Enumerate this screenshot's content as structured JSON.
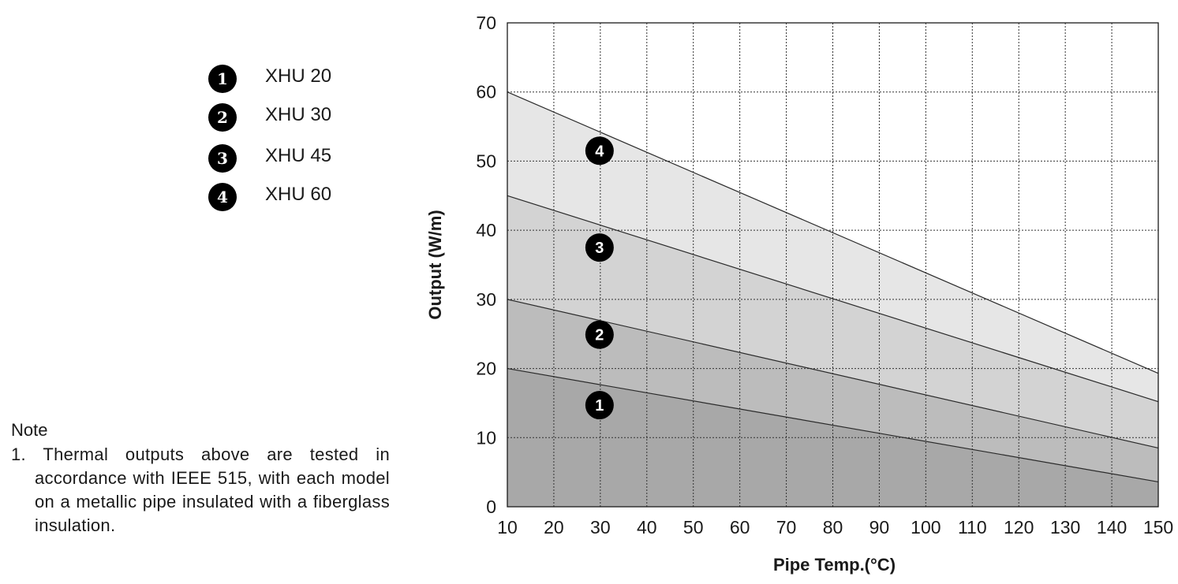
{
  "legend": {
    "items": [
      {
        "number": "1",
        "label": "XHU 20"
      },
      {
        "number": "2",
        "label": "XHU 30"
      },
      {
        "number": "3",
        "label": "XHU 45"
      },
      {
        "number": "4",
        "label": "XHU 60"
      }
    ]
  },
  "note": {
    "title": "Note",
    "line": "1. Thermal outputs above are tested in accordance with IEEE 515, with each model on a metallic pipe insulated with a fiberglass insulation."
  },
  "chart_data": {
    "type": "area",
    "xlabel": "Pipe Temp.(°C)",
    "ylabel": "Output (W/m)",
    "xlim": [
      10,
      150
    ],
    "ylim": [
      0,
      70
    ],
    "x_ticks": [
      10,
      20,
      30,
      40,
      50,
      60,
      70,
      80,
      90,
      100,
      110,
      120,
      130,
      140,
      150
    ],
    "y_ticks": [
      0,
      10,
      20,
      30,
      40,
      50,
      60,
      70
    ],
    "grid": true,
    "legend_position": "top-left",
    "marker_x": 30,
    "series": [
      {
        "name": "XHU 20",
        "marker": "1",
        "x": [
          10,
          150
        ],
        "y": [
          20,
          3.6
        ],
        "marker_y": 14.7,
        "fill": "#a8a8a8"
      },
      {
        "name": "XHU 30",
        "marker": "2",
        "x": [
          10,
          150
        ],
        "y": [
          30,
          8.5
        ],
        "marker_y": 24.9,
        "fill": "#bcbcbc"
      },
      {
        "name": "XHU 45",
        "marker": "3",
        "x": [
          10,
          150
        ],
        "y": [
          45,
          15.2
        ],
        "marker_y": 37.5,
        "fill": "#d3d3d3"
      },
      {
        "name": "XHU 60",
        "marker": "4",
        "x": [
          10,
          150
        ],
        "y": [
          60,
          19.3
        ],
        "marker_y": 51.5,
        "fill": "#e6e6e6"
      }
    ]
  }
}
